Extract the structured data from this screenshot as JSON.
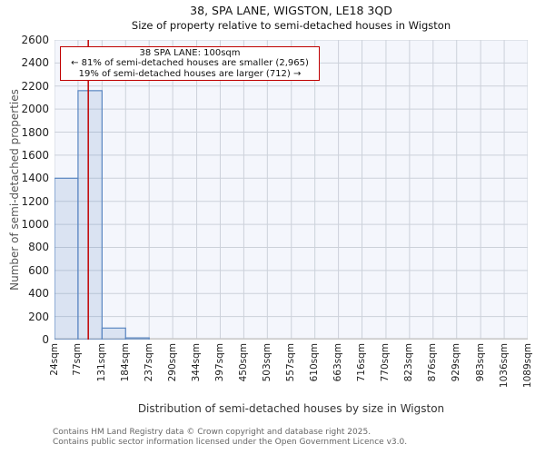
{
  "header": {
    "title": "38, SPA LANE, WIGSTON, LE18 3QD",
    "subtitle": "Size of property relative to semi-detached houses in Wigston"
  },
  "annotation": {
    "line1": "38 SPA LANE: 100sqm",
    "line2": "← 81% of semi-detached houses are smaller (2,965)",
    "line3": "19% of semi-detached houses are larger (712) →"
  },
  "chart_data": {
    "type": "bar",
    "title": "38, SPA LANE, WIGSTON, LE18 3QD",
    "subtitle": "Size of property relative to semi-detached houses in Wigston",
    "xlabel": "Distribution of semi-detached houses by size in Wigston",
    "ylabel": "Number of semi-detached properties",
    "bin_edges": [
      24,
      77,
      131,
      184,
      237,
      290,
      344,
      397,
      450,
      503,
      557,
      610,
      663,
      716,
      770,
      823,
      876,
      929,
      983,
      1036,
      1089
    ],
    "x_tick_labels": [
      "24sqm",
      "77sqm",
      "131sqm",
      "184sqm",
      "237sqm",
      "290sqm",
      "344sqm",
      "397sqm",
      "450sqm",
      "503sqm",
      "557sqm",
      "610sqm",
      "663sqm",
      "716sqm",
      "770sqm",
      "823sqm",
      "876sqm",
      "929sqm",
      "983sqm",
      "1036sqm",
      "1089sqm"
    ],
    "values": [
      1400,
      2160,
      100,
      15,
      0,
      0,
      0,
      0,
      0,
      0,
      0,
      0,
      0,
      0,
      0,
      0,
      0,
      0,
      0,
      0
    ],
    "y_ticks": [
      0,
      200,
      400,
      600,
      800,
      1000,
      1200,
      1400,
      1600,
      1800,
      2000,
      2200,
      2400,
      2600
    ],
    "ylim": [
      0,
      2600
    ],
    "xlim": [
      24,
      1089
    ],
    "marker_value": 100,
    "marker_unit": "sqm",
    "grid": true,
    "legend": null,
    "colors": {
      "bar_fill": "rgba(91,135,194,0.17)",
      "bar_edge": "#5b87c2",
      "marker_line": "#c00000",
      "annotation_border": "#c00000",
      "grid_line": "#ccd1da",
      "axis_line": "#c9c9c9",
      "plot_bg": "#f4f6fc"
    }
  },
  "footer": {
    "line1": "Contains HM Land Registry data © Crown copyright and database right 2025.",
    "line2": "Contains public sector information licensed under the Open Government Licence v3.0."
  }
}
